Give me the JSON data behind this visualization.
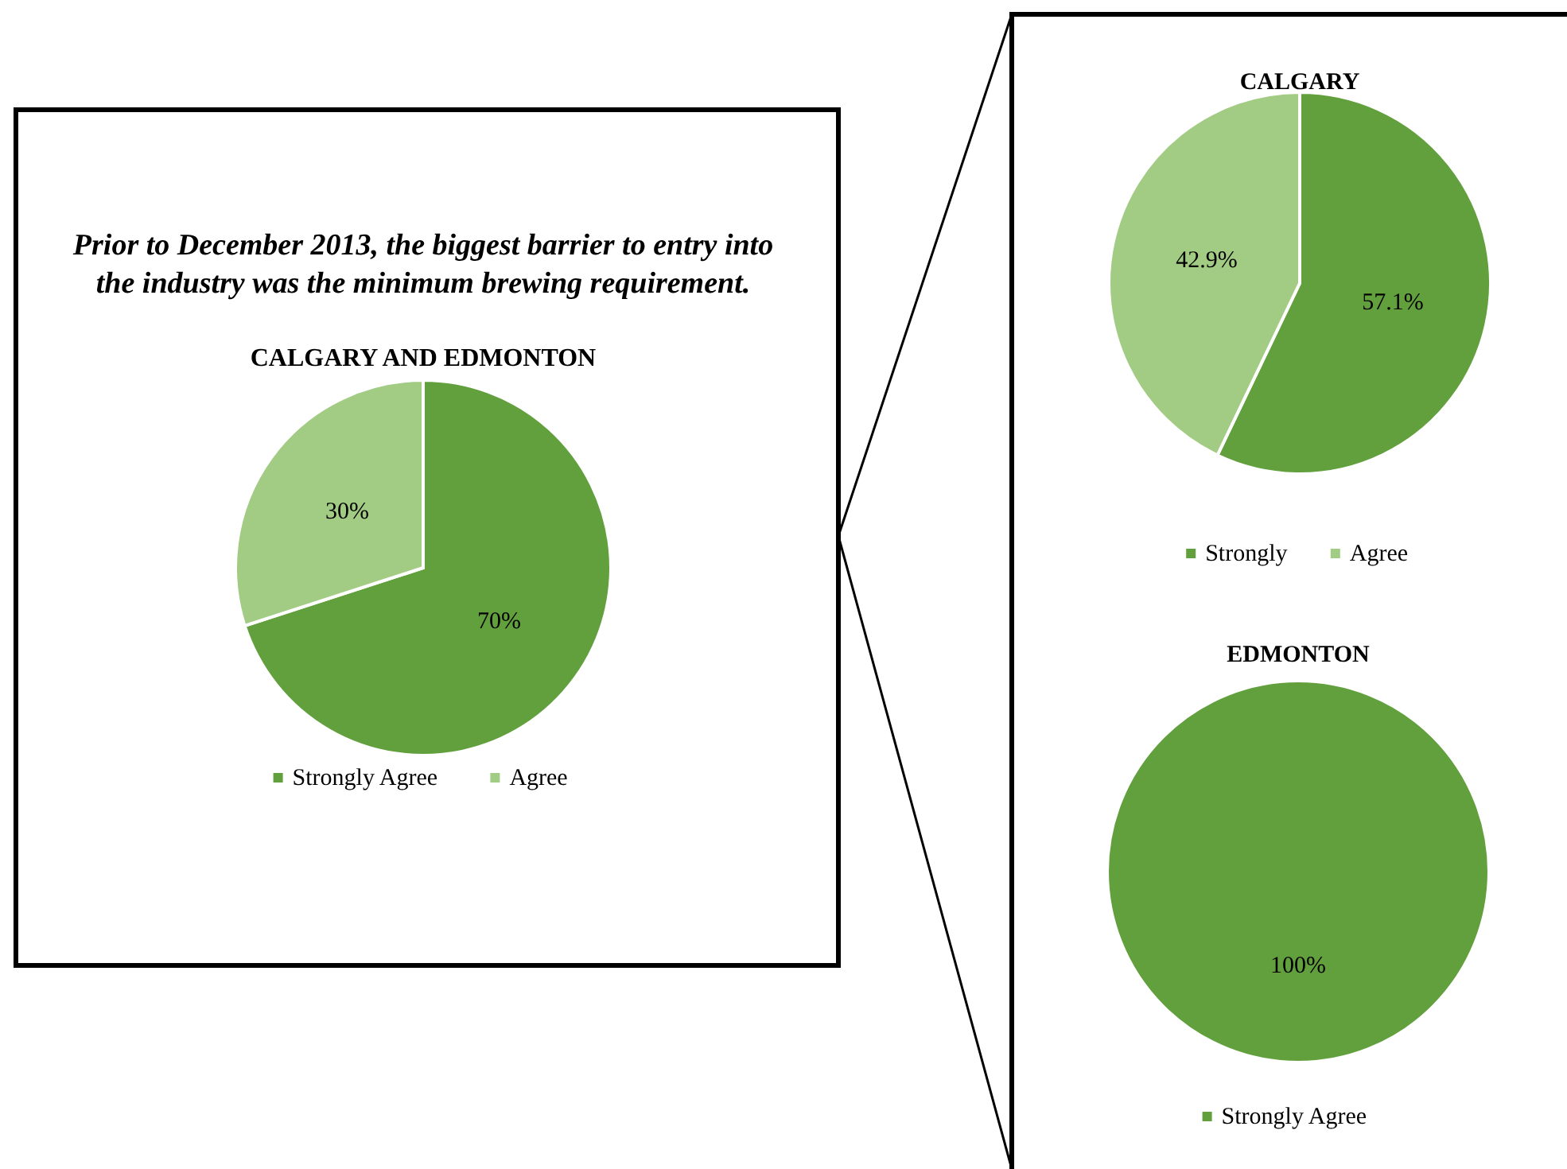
{
  "chart_data": [
    {
      "type": "pie",
      "title": "Prior to December 2013, the biggest barrier to entry into the industry was the minimum brewing requirement.",
      "subtitle": "CALGARY AND EDMONTON",
      "categories": [
        "Strongly Agree",
        "Agree"
      ],
      "values": [
        70,
        30
      ],
      "colors": [
        "#62a03e",
        "#a2cb83"
      ],
      "value_labels": [
        "70%",
        "30%"
      ],
      "legend": "bottom"
    },
    {
      "type": "pie",
      "title": "CALGARY",
      "categories": [
        "Strongly",
        "Agree"
      ],
      "values": [
        57.1,
        42.9
      ],
      "colors": [
        "#62a03e",
        "#a2cb83"
      ],
      "value_labels": [
        "57.1%",
        "42.9%"
      ],
      "legend": "bottom"
    },
    {
      "type": "pie",
      "title": "EDMONTON",
      "categories": [
        "Strongly Agree"
      ],
      "values": [
        100
      ],
      "colors": [
        "#62a03e"
      ],
      "value_labels": [
        "100%"
      ],
      "legend": "bottom"
    }
  ]
}
